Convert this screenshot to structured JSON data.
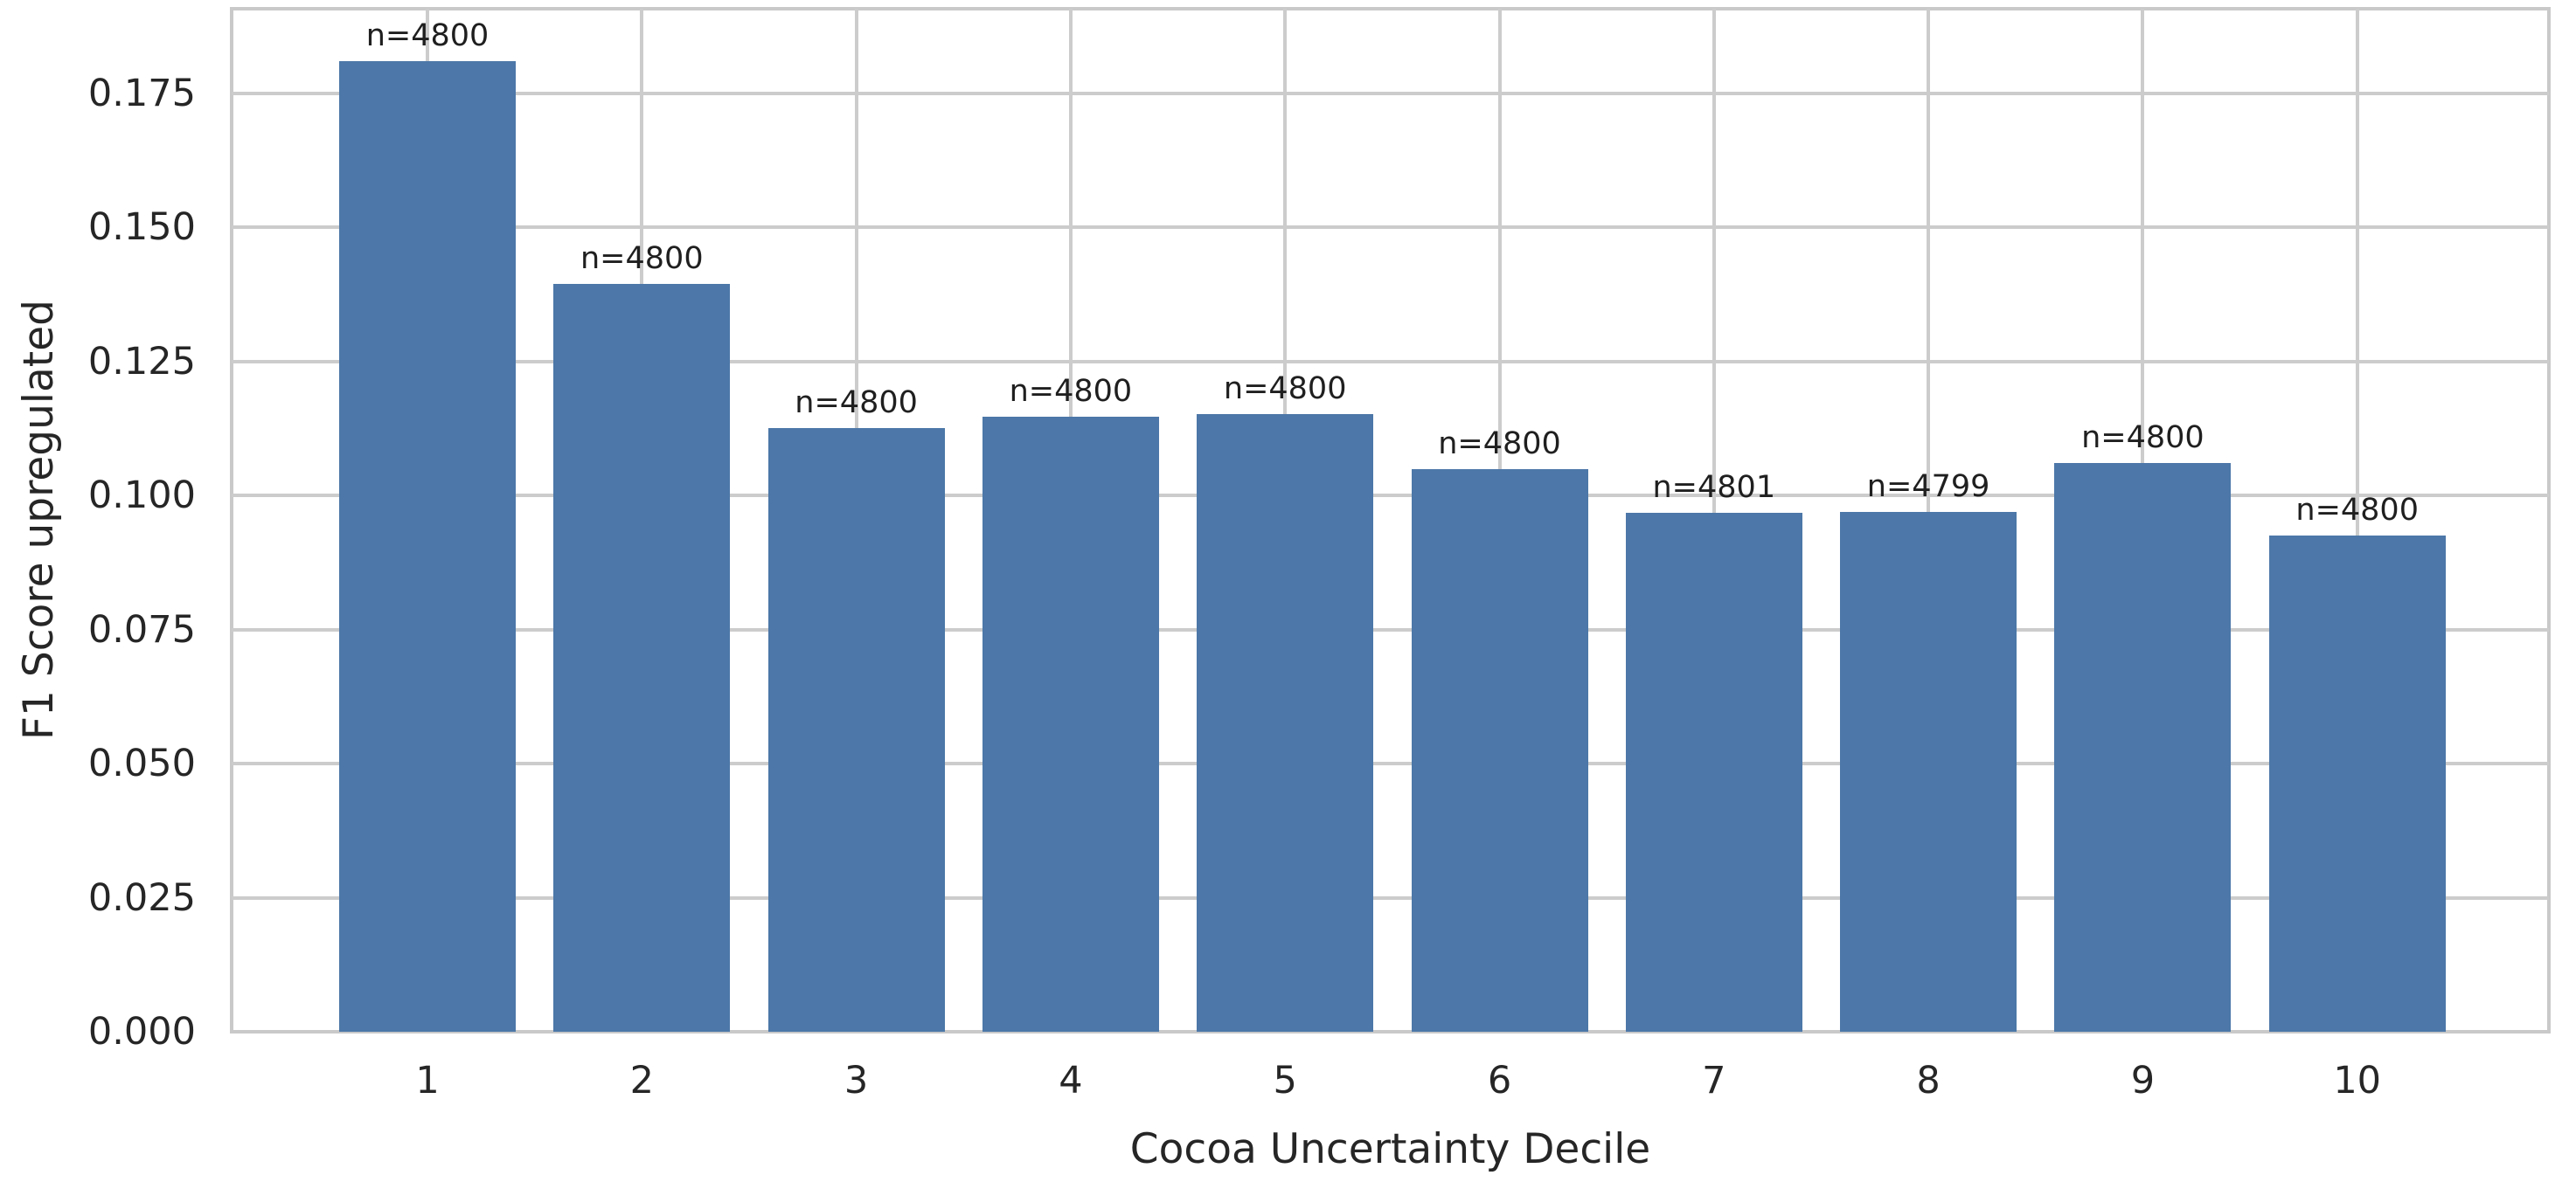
{
  "chart_data": {
    "type": "bar",
    "title": "",
    "xlabel": "Cocoa Uncertainty Decile",
    "ylabel": "F1 Score upregulated",
    "categories": [
      "1",
      "2",
      "3",
      "4",
      "5",
      "6",
      "7",
      "8",
      "9",
      "10"
    ],
    "values": [
      0.181,
      0.1395,
      0.1126,
      0.1147,
      0.1152,
      0.1049,
      0.0968,
      0.097,
      0.1061,
      0.0925
    ],
    "bar_labels": [
      "n=4800",
      "n=4800",
      "n=4800",
      "n=4800",
      "n=4800",
      "n=4800",
      "n=4801",
      "n=4799",
      "n=4800",
      "n=4800"
    ],
    "ylim": [
      0,
      0.1908
    ],
    "ytick_values": [
      0,
      0.025,
      0.05,
      0.075,
      0.1,
      0.125,
      0.15,
      0.175
    ],
    "ytick_labels": [
      "0.000",
      "0.025",
      "0.050",
      "0.075",
      "0.100",
      "0.125",
      "0.150",
      "0.175"
    ],
    "grid": true,
    "grid_style": "both-horizontal-and-vertical",
    "legend": null,
    "bar_color": "#4C77A8",
    "grid_color": "#cccccc",
    "text_color": "#262626",
    "background_color": "#ffffff"
  }
}
